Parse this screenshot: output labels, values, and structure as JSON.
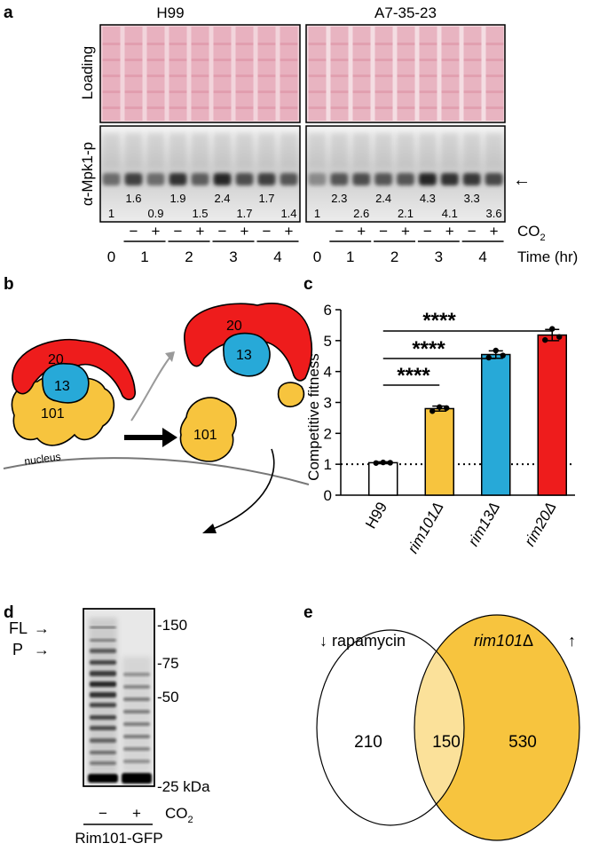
{
  "panel_labels": {
    "a": "a",
    "b": "b",
    "c": "c",
    "d": "d",
    "e": "e"
  },
  "panel_a": {
    "titles": [
      "H99",
      "A7-35-23"
    ],
    "loading_label": "Loading",
    "mpk_label": "α-Mpk1-p",
    "arrow_glyph": "←",
    "co2_label": "CO",
    "co2_sub": "2",
    "time_label": "Time (hr)",
    "times": [
      "0",
      "1",
      "2",
      "3",
      "4"
    ],
    "minus": "−",
    "plus": "+",
    "h99_upper": [
      "1.6",
      "1.9",
      "2.4",
      "1.7"
    ],
    "h99_lower": [
      "1",
      "0.9",
      "1.5",
      "1.7",
      "1.4"
    ],
    "a7_upper": [
      "2.3",
      "2.4",
      "4.3",
      "3.3"
    ],
    "a7_lower": [
      "1",
      "2.6",
      "2.1",
      "4.1",
      "3.6"
    ]
  },
  "panel_b": {
    "rim20": "20",
    "rim13_bound": "13",
    "rim101_bound": "101",
    "rim13_free": "13",
    "rim101_free": "101",
    "nucleus": "nucleus",
    "colors": {
      "rim20": "#ee1c1c",
      "rim13": "#27a9d8",
      "rim101": "#f7c43e"
    }
  },
  "panel_c": {
    "ylabel": "Competitive fitness",
    "yticks": [
      "0",
      "1",
      "2",
      "3",
      "4",
      "5",
      "6"
    ],
    "sig": [
      "****",
      "****",
      "****"
    ]
  },
  "panel_d": {
    "fl_label": "FL",
    "p_label": "P",
    "arrow_glyph": "→",
    "markers": [
      "-150",
      "-75",
      "-50",
      "-25 kDa"
    ],
    "minus": "−",
    "plus": "+",
    "co2_label": "CO",
    "co2_sub": "2",
    "strain": "Rim101-GFP"
  },
  "panel_e": {
    "left_label": "rapamycin",
    "left_arrow": "↓",
    "right_label_italic": "rim101",
    "right_label_rest": "Δ",
    "right_arrow": "↑",
    "left_only": "210",
    "overlap": "150",
    "right_only": "530",
    "colors": {
      "right": "#f7c43e",
      "overlap": "#fbe19a"
    }
  },
  "chart_data": {
    "type": "bar",
    "title": "",
    "xlabel": "",
    "ylabel": "Competitive fitness",
    "categories": [
      "H99",
      "rim101Δ",
      "rim13Δ",
      "rim20Δ"
    ],
    "values": [
      1.05,
      2.8,
      4.55,
      5.18
    ],
    "errors": [
      0.03,
      0.08,
      0.12,
      0.18
    ],
    "points": [
      [
        1.04,
        1.06,
        1.05
      ],
      [
        2.72,
        2.85,
        2.82
      ],
      [
        4.45,
        4.68,
        4.52
      ],
      [
        5.02,
        5.38,
        5.12
      ]
    ],
    "colors": [
      "#ffffff",
      "#f7c43e",
      "#27a9d8",
      "#ee1c1c"
    ],
    "ylim": [
      0,
      6
    ],
    "yticks": [
      0,
      1,
      2,
      3,
      4,
      5,
      6
    ],
    "reference_line": 1,
    "grid": false,
    "legend": "none"
  }
}
